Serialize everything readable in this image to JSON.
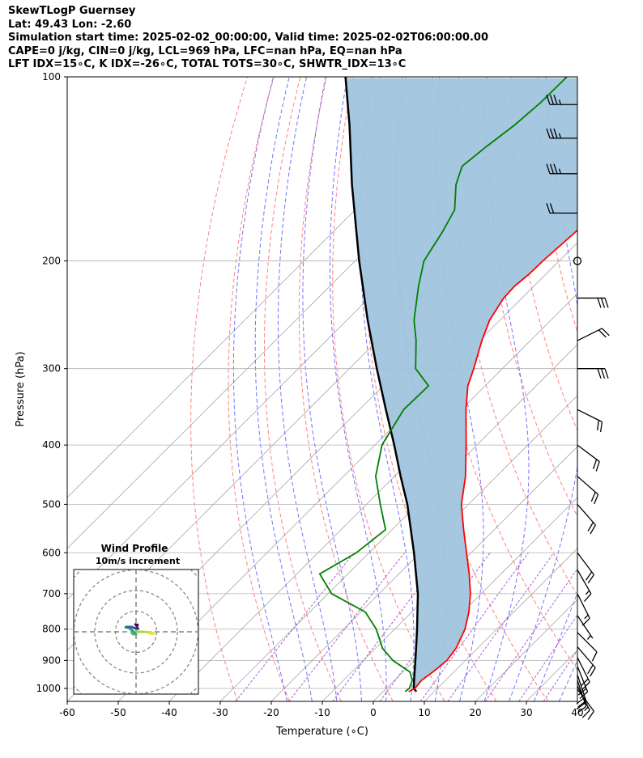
{
  "header": {
    "line1": "SkewTLogP Guernsey",
    "line2": "Lat: 49.43   Lon: -2.60",
    "line3": "Simulation start time: 2025-02-02_00:00:00, Valid time: 2025-02-02T06:00:00.00",
    "line4": "CAPE=0 j/kg, CIN=0 j/kg, LCL=969 hPa, LFC=nan hPa, EQ=nan hPa",
    "line5": "LFT IDX=15∘C, K IDX=-26∘C, TOTAL TOTS=30∘C, SHWTR_IDX=13∘C"
  },
  "chart_data": {
    "type": "line",
    "subtype": "skew-t log-p",
    "xlabel": "Temperature (∘C)",
    "ylabel": "Pressure (hPa)",
    "xlim": [
      -60,
      40
    ],
    "ylim": [
      1050,
      100
    ],
    "y_scale": "log",
    "x_ticks": [
      -60,
      -50,
      -40,
      -30,
      -20,
      -10,
      0,
      10,
      20,
      30,
      40
    ],
    "y_ticks": [
      100,
      200,
      300,
      400,
      500,
      600,
      700,
      800,
      900,
      1000
    ],
    "grid": true,
    "colors": {
      "temperature": "#ff0000",
      "dewpoint": "#008000",
      "parcel": "#000000",
      "cin_cape_shade": "#a0c4de",
      "dry_adiabat": "#ff6b6b",
      "moist_adiabat": "#5a5aff",
      "mixing_ratio": "#9a32cd",
      "isotherm": "#aaaaaa"
    },
    "temperature": [
      {
        "p": 1012,
        "t": 5.0
      },
      {
        "p": 1000,
        "t": 5.6
      },
      {
        "p": 970,
        "t": 5.3
      },
      {
        "p": 940,
        "t": 5.9
      },
      {
        "p": 900,
        "t": 6.4
      },
      {
        "p": 860,
        "t": 5.8
      },
      {
        "p": 800,
        "t": 3.8
      },
      {
        "p": 750,
        "t": 1.2
      },
      {
        "p": 700,
        "t": -2.1
      },
      {
        "p": 650,
        "t": -6.2
      },
      {
        "p": 600,
        "t": -10.9
      },
      {
        "p": 550,
        "t": -16.0
      },
      {
        "p": 500,
        "t": -21.4
      },
      {
        "p": 450,
        "t": -26.1
      },
      {
        "p": 400,
        "t": -32.1
      },
      {
        "p": 350,
        "t": -39.1
      },
      {
        "p": 320,
        "t": -43.4
      },
      {
        "p": 300,
        "t": -45.6
      },
      {
        "p": 270,
        "t": -49.5
      },
      {
        "p": 250,
        "t": -52.0
      },
      {
        "p": 230,
        "t": -53.6
      },
      {
        "p": 220,
        "t": -53.8
      },
      {
        "p": 210,
        "t": -53.3
      },
      {
        "p": 200,
        "t": -53.2
      },
      {
        "p": 180,
        "t": -52.5
      },
      {
        "p": 160,
        "t": -52.2
      },
      {
        "p": 140,
        "t": -52.5
      },
      {
        "p": 125,
        "t": -52.5
      },
      {
        "p": 115,
        "t": -53.7
      },
      {
        "p": 100,
        "t": -56.0
      }
    ],
    "dewpoint": [
      {
        "p": 1012,
        "t": 4.3
      },
      {
        "p": 1000,
        "t": 4.5
      },
      {
        "p": 970,
        "t": 3.5
      },
      {
        "p": 940,
        "t": 1.4
      },
      {
        "p": 900,
        "t": -4.2
      },
      {
        "p": 860,
        "t": -8.6
      },
      {
        "p": 800,
        "t": -13.6
      },
      {
        "p": 750,
        "t": -19.1
      },
      {
        "p": 700,
        "t": -29.3
      },
      {
        "p": 650,
        "t": -35.5
      },
      {
        "p": 600,
        "t": -32.5
      },
      {
        "p": 550,
        "t": -31.3
      },
      {
        "p": 500,
        "t": -37.3
      },
      {
        "p": 450,
        "t": -43.7
      },
      {
        "p": 400,
        "t": -48.6
      },
      {
        "p": 350,
        "t": -51.3
      },
      {
        "p": 320,
        "t": -51.1
      },
      {
        "p": 300,
        "t": -57.0
      },
      {
        "p": 270,
        "t": -62.4
      },
      {
        "p": 250,
        "t": -66.8
      },
      {
        "p": 220,
        "t": -72.6
      },
      {
        "p": 200,
        "t": -76.5
      },
      {
        "p": 180,
        "t": -78.5
      },
      {
        "p": 165,
        "t": -80.5
      },
      {
        "p": 150,
        "t": -85.2
      },
      {
        "p": 140,
        "t": -87.6
      },
      {
        "p": 130,
        "t": -86.7
      },
      {
        "p": 120,
        "t": -85.4
      },
      {
        "p": 110,
        "t": -84.7
      },
      {
        "p": 100,
        "t": -84.6
      }
    ],
    "parcel": [
      {
        "p": 1012,
        "t": 6.5
      },
      {
        "p": 1000,
        "t": 5.4
      },
      {
        "p": 969,
        "t": 3.8
      },
      {
        "p": 900,
        "t": 0.2
      },
      {
        "p": 850,
        "t": -2.6
      },
      {
        "p": 800,
        "t": -5.6
      },
      {
        "p": 700,
        "t": -12.4
      },
      {
        "p": 600,
        "t": -21.2
      },
      {
        "p": 500,
        "t": -32.0
      },
      {
        "p": 450,
        "t": -38.8
      },
      {
        "p": 400,
        "t": -46.2
      },
      {
        "p": 350,
        "t": -54.8
      },
      {
        "p": 300,
        "t": -64.6
      },
      {
        "p": 250,
        "t": -75.9
      },
      {
        "p": 200,
        "t": -89.2
      },
      {
        "p": 150,
        "t": -105.6
      },
      {
        "p": 120,
        "t": -117.7
      },
      {
        "p": 100,
        "t": -128.0
      }
    ],
    "hodograph": {
      "title": "Wind Profile",
      "subtitle": "10m/s increment",
      "rings_ms": [
        10,
        20,
        30,
        40
      ],
      "points_uv": [
        [
          7.0,
          -1.0
        ],
        [
          8.5,
          -0.8
        ],
        [
          6.0,
          -0.2
        ],
        [
          3.5,
          0.0
        ],
        [
          0.5,
          0.0
        ],
        [
          -1.5,
          -0.3
        ],
        [
          -2.0,
          -0.7
        ],
        [
          -1.5,
          -1.1
        ],
        [
          0.0,
          -1.3
        ],
        [
          -0.5,
          -0.7
        ],
        [
          -2.0,
          0.8
        ],
        [
          -3.0,
          1.6
        ],
        [
          -3.5,
          2.0
        ],
        [
          -5.0,
          2.2
        ],
        [
          -4.0,
          2.4
        ],
        [
          -2.0,
          2.3
        ],
        [
          -1.0,
          1.9
        ],
        [
          0.0,
          1.6
        ],
        [
          1.0,
          1.5
        ],
        [
          0.5,
          2.0
        ],
        [
          0.5,
          2.9
        ],
        [
          0.7,
          3.4
        ],
        [
          0.0,
          3.4
        ],
        [
          -0.3,
          3.6
        ]
      ]
    },
    "wind_barbs": [
      {
        "p": 1003,
        "u": -3,
        "v": 4
      },
      {
        "p": 990,
        "u": -3,
        "v": 6
      },
      {
        "p": 970,
        "u": -3,
        "v": 9
      },
      {
        "p": 950,
        "u": -3,
        "v": 9
      },
      {
        "p": 920,
        "u": -4,
        "v": 10
      },
      {
        "p": 890,
        "u": -5,
        "v": 10
      },
      {
        "p": 855,
        "u": -6,
        "v": 7
      },
      {
        "p": 810,
        "u": -3,
        "v": 3
      },
      {
        "p": 760,
        "u": -2,
        "v": 3
      },
      {
        "p": 700,
        "u": -3,
        "v": 6
      },
      {
        "p": 640,
        "u": -4,
        "v": 7
      },
      {
        "p": 600,
        "u": -6,
        "v": 8
      },
      {
        "p": 500,
        "u": -7,
        "v": 8
      },
      {
        "p": 450,
        "u": -8,
        "v": 7
      },
      {
        "p": 400,
        "u": -8,
        "v": 6
      },
      {
        "p": 350,
        "u": -10,
        "v": 5
      },
      {
        "p": 300,
        "u": -15,
        "v": 0
      },
      {
        "p": 270,
        "u": -10,
        "v": -5
      },
      {
        "p": 230,
        "u": -15,
        "v": 0
      },
      {
        "p": 200,
        "u": 0,
        "v": 0
      },
      {
        "p": 167,
        "u": 10,
        "v": 0
      },
      {
        "p": 144,
        "u": 17,
        "v": 0
      },
      {
        "p": 126,
        "u": 17,
        "v": 0
      },
      {
        "p": 111,
        "u": 17,
        "v": 0
      }
    ]
  }
}
